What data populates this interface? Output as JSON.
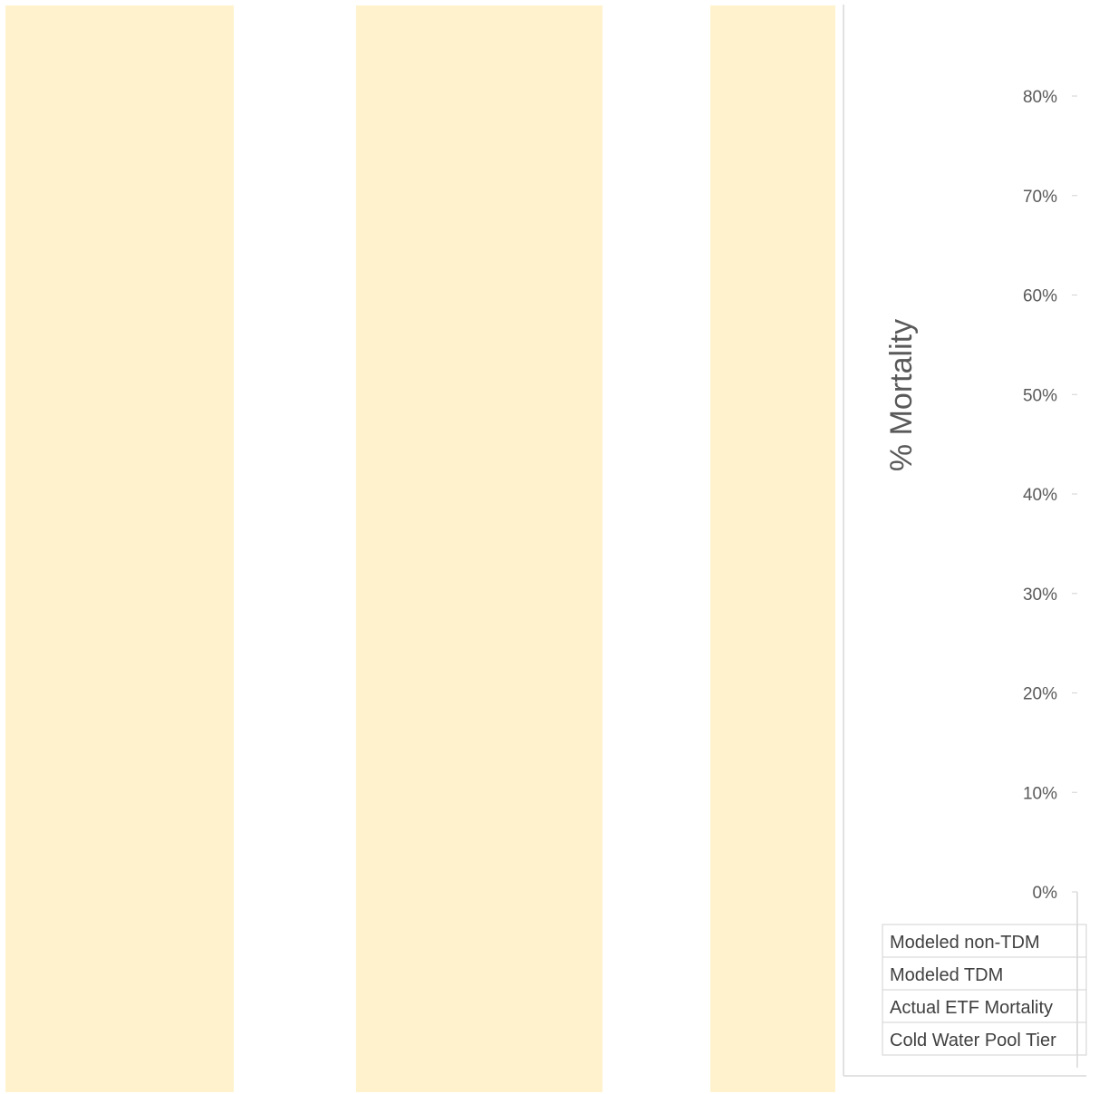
{
  "colors": {
    "band": "#FFF2CC",
    "axis": "#D9D9D9",
    "gridtick": "#D9D9D9",
    "text": "#595959",
    "table_text": "#404040"
  },
  "chart_data": {
    "type": "bar",
    "title": "",
    "xlabel": "",
    "ylabel": "% Mortality",
    "ylim": [
      0,
      80
    ],
    "y_ticks": [
      "0%",
      "10%",
      "20%",
      "30%",
      "40%",
      "50%",
      "60%",
      "70%",
      "80%"
    ],
    "y_tick_values": [
      0,
      10,
      20,
      30,
      40,
      50,
      60,
      70,
      80
    ],
    "background_bands": 3,
    "data_table_rows": [
      "Modeled non-TDM",
      "Modeled TDM",
      "Actual ETF Mortality",
      "Cold Water Pool Tier"
    ],
    "grid": false,
    "legend": "none"
  }
}
